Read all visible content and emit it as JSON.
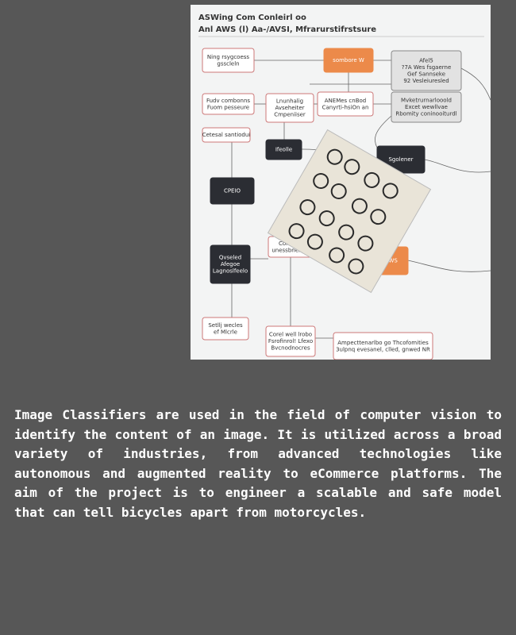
{
  "image": {
    "title": [
      "ASWing Com Conleirl oo",
      "Anl AWS (l) Aa-/AVSI, Mfrarurstifrstsure"
    ],
    "nodes": [
      {
        "lines": [
          "Ning rsygcoess",
          "gsscleln"
        ]
      },
      {
        "lines": [
          "sombore W"
        ]
      },
      {
        "lines": [
          "Afel5",
          "?7A Wes fsgaerne",
          "Gef Sannseke",
          "92 Vesleiuresled"
        ]
      },
      {
        "lines": [
          "Fudv combonns",
          "Fuom pesseure"
        ]
      },
      {
        "lines": [
          "Lnunhalig",
          "Avseheiter",
          "Cmpeniiser"
        ]
      },
      {
        "lines": [
          "ANEMes cnBod",
          "Canyrti-hsiOn an"
        ]
      },
      {
        "lines": [
          "Mvketrurnarlooold",
          "Excet wewllvae",
          "Rbomity coninooiturdl"
        ]
      },
      {
        "lines": [
          "Cetesal santiodui"
        ]
      },
      {
        "lines": [
          "Ifeolle"
        ]
      },
      {
        "lines": [
          "Sgolener"
        ]
      },
      {
        "lines": [
          "CPEIO"
        ]
      },
      {
        "lines": [
          "Qvseled",
          "Afegoe",
          "Lagnoslfeelo"
        ]
      },
      {
        "lines": [
          "Connaret",
          "unessbner olo"
        ]
      },
      {
        "lines": [
          "AWS"
        ]
      },
      {
        "lines": [
          "Setllj wecles",
          "ef Mlcrle"
        ]
      },
      {
        "lines": [
          "Corel well lrobo",
          "Fsrofinrol! Lfexo",
          "Bvcnodnocres"
        ]
      },
      {
        "lines": [
          "Ampecttenarlbo go Thcofomities",
          "3ulpnq evesanel, clled, gnwed NR"
        ]
      }
    ]
  },
  "paragraph": "Image Classifiers are used in the field of computer vision to identify the content of an image. It is utilized across a broad variety of industries, from advanced technologies like autonomous and augmented reality to eCommerce platforms. The aim of the project is to engineer a scalable and safe model that can tell bicycles apart from motorcycles."
}
